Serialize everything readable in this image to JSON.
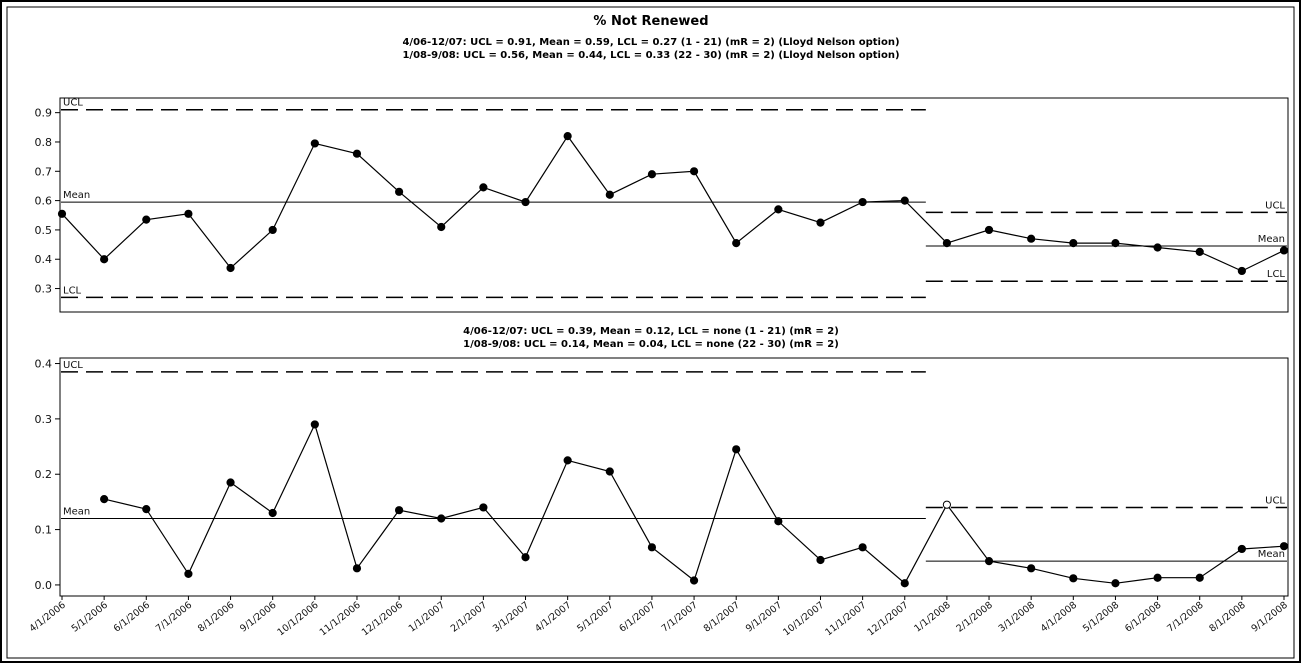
{
  "chart_data": {
    "type": "control-chart",
    "title": "% Not Renewed",
    "x_labels": [
      "4/1/2006",
      "5/1/2006",
      "6/1/2006",
      "7/1/2006",
      "8/1/2006",
      "9/1/2006",
      "10/1/2006",
      "11/1/2006",
      "12/1/2006",
      "1/1/2007",
      "2/1/2007",
      "3/1/2007",
      "4/1/2007",
      "5/1/2007",
      "6/1/2007",
      "7/1/2007",
      "8/1/2007",
      "9/1/2007",
      "10/1/2007",
      "11/1/2007",
      "12/1/2007",
      "1/1/2008",
      "2/1/2008",
      "3/1/2008",
      "4/1/2008",
      "5/1/2008",
      "6/1/2008",
      "7/1/2008",
      "8/1/2008",
      "9/1/2008"
    ],
    "panels": [
      {
        "name": "individuals",
        "subtitle_lines": [
          "4/06-12/07: UCL = 0.91, Mean = 0.59, LCL = 0.27 (1 - 21) (mR = 2) (Lloyd Nelson option)",
          "1/08-9/08: UCL = 0.56, Mean = 0.44, LCL = 0.33 (22 - 30) (mR = 2) (Lloyd Nelson option)"
        ],
        "ylim": [
          0.22,
          0.95
        ],
        "yticks": [
          "0.9",
          "0.8",
          "0.7",
          "0.6",
          "0.5",
          "0.4",
          "0.3"
        ],
        "ytick_values": [
          0.9,
          0.8,
          0.7,
          0.6,
          0.5,
          0.4,
          0.3
        ],
        "values": [
          0.555,
          0.4,
          0.535,
          0.555,
          0.37,
          0.5,
          0.795,
          0.76,
          0.63,
          0.51,
          0.645,
          0.595,
          0.82,
          0.62,
          0.69,
          0.7,
          0.455,
          0.57,
          0.525,
          0.595,
          0.6,
          0.455,
          0.5,
          0.47,
          0.455,
          0.455,
          0.44,
          0.425,
          0.36,
          0.43
        ],
        "hollow_points": [],
        "segments": [
          {
            "from": 1,
            "to": 21,
            "ucl": 0.91,
            "mean": 0.595,
            "lcl": 0.27
          },
          {
            "from": 22,
            "to": 30,
            "ucl": 0.56,
            "mean": 0.445,
            "lcl": 0.325
          }
        ],
        "line_labels": [
          {
            "text": "UCL",
            "segment": 0,
            "line": "ucl"
          },
          {
            "text": "Mean",
            "segment": 0,
            "line": "mean"
          },
          {
            "text": "LCL",
            "segment": 0,
            "line": "lcl"
          },
          {
            "text": "UCL",
            "segment": 1,
            "line": "ucl"
          },
          {
            "text": "Mean",
            "segment": 1,
            "line": "mean"
          },
          {
            "text": "LCL",
            "segment": 1,
            "line": "lcl"
          }
        ]
      },
      {
        "name": "moving-range",
        "subtitle_lines": [
          "4/06-12/07: UCL = 0.39, Mean = 0.12, LCL = none (1 - 21) (mR = 2)",
          "1/08-9/08: UCL = 0.14, Mean = 0.04, LCL = none (22 - 30) (mR = 2)"
        ],
        "ylim": [
          -0.02,
          0.41
        ],
        "yticks": [
          "0.4",
          "0.3",
          "0.2",
          "0.1",
          "0.0"
        ],
        "ytick_values": [
          0.4,
          0.3,
          0.2,
          0.1,
          0.0
        ],
        "values": [
          null,
          0.155,
          0.137,
          0.02,
          0.185,
          0.13,
          0.29,
          0.03,
          0.135,
          0.12,
          0.14,
          0.05,
          0.225,
          0.205,
          0.068,
          0.008,
          0.245,
          0.115,
          0.045,
          0.068,
          0.003,
          0.145,
          0.043,
          0.03,
          0.012,
          0.003,
          0.013,
          0.013,
          0.065,
          0.07
        ],
        "hollow_points": [
          22
        ],
        "segments": [
          {
            "from": 1,
            "to": 21,
            "ucl": 0.385,
            "mean": 0.12,
            "lcl": null
          },
          {
            "from": 22,
            "to": 30,
            "ucl": 0.14,
            "mean": 0.043,
            "lcl": null
          }
        ],
        "line_labels": [
          {
            "text": "UCL",
            "segment": 0,
            "line": "ucl"
          },
          {
            "text": "Mean",
            "segment": 0,
            "line": "mean"
          },
          {
            "text": "UCL",
            "segment": 1,
            "line": "ucl"
          },
          {
            "text": "Mean",
            "segment": 1,
            "line": "mean"
          }
        ]
      }
    ]
  }
}
